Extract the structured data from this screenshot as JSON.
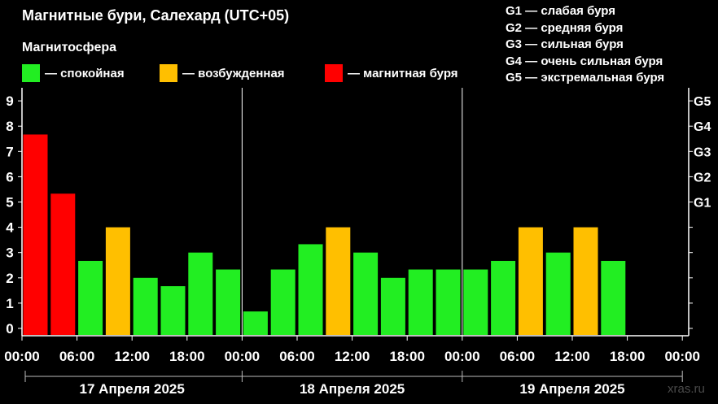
{
  "title": "Магнитные бури, Салехард (UTC+05)",
  "subtitle": "Магнитосфера",
  "legend": [
    {
      "label": "— спокойная",
      "color": "#22ee22"
    },
    {
      "label": "— возбужденная",
      "color": "#ffbf00"
    },
    {
      "label": "— магнитная буря",
      "color": "#ff0000"
    }
  ],
  "g_legend": [
    "G1 — слабая буря",
    "G2 — средняя буря",
    "G3 — сильная буря",
    "G4 — очень сильная буря",
    "G5 — экстремальная буря"
  ],
  "watermark": "xras.ru",
  "colors": {
    "quiet": "#22ee22",
    "active": "#ffbf00",
    "storm": "#ff0000"
  },
  "chart_data": {
    "type": "bar",
    "title": "Магнитные бури, Салехард (UTC+05)",
    "interval_hours": 3,
    "x_tick_labels": [
      "00:00",
      "06:00",
      "12:00",
      "18:00",
      "00:00",
      "06:00",
      "12:00",
      "18:00",
      "00:00",
      "06:00",
      "12:00",
      "18:00",
      "00:00"
    ],
    "date_labels": [
      "17 Апреля 2025",
      "18 Апреля 2025",
      "19 Апреля 2025"
    ],
    "ylim": [
      0,
      9
    ],
    "y_ticks": [
      0,
      1,
      2,
      3,
      4,
      5,
      6,
      7,
      8,
      9
    ],
    "g_scale": [
      {
        "level": 5,
        "label": "G1"
      },
      {
        "level": 6,
        "label": "G2"
      },
      {
        "level": 7,
        "label": "G3"
      },
      {
        "level": 8,
        "label": "G4"
      },
      {
        "level": 9,
        "label": "G5"
      }
    ],
    "values": [
      7.67,
      5.33,
      2.67,
      4,
      2,
      1.67,
      3,
      2.33,
      0.67,
      2.33,
      3.33,
      4,
      3,
      2,
      2.33,
      2.33,
      2.33,
      2.67,
      4,
      3,
      4,
      2.67
    ],
    "status": [
      "storm",
      "storm",
      "quiet",
      "active",
      "quiet",
      "quiet",
      "quiet",
      "quiet",
      "quiet",
      "quiet",
      "quiet",
      "active",
      "quiet",
      "quiet",
      "quiet",
      "quiet",
      "quiet",
      "quiet",
      "active",
      "quiet",
      "active",
      "quiet"
    ]
  }
}
